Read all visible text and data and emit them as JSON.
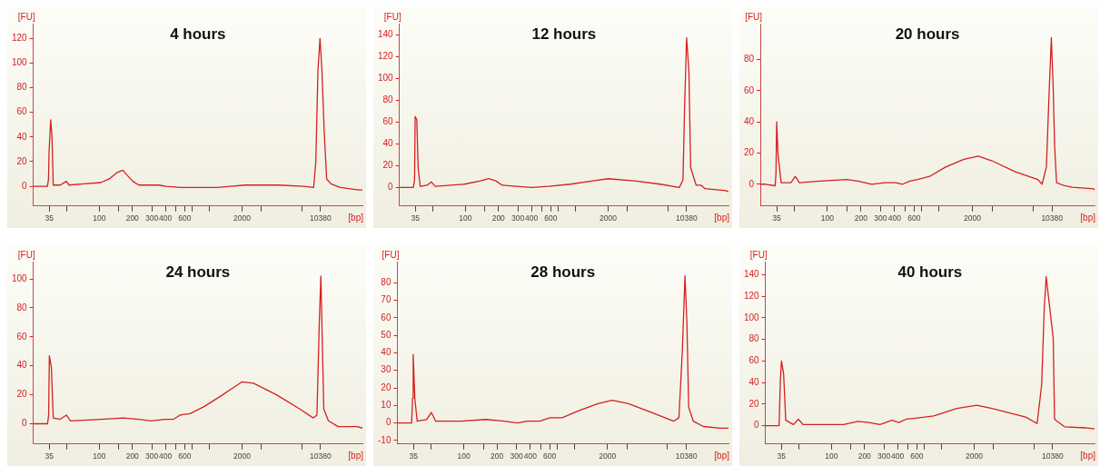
{
  "chart_data": [
    {
      "type": "line",
      "title": "4 hours",
      "xlabel": "[bp]",
      "ylabel": "[FU]",
      "color": "#d42020",
      "marker": "none",
      "log": "x",
      "xlim": [
        25,
        25000
      ],
      "ylim": [
        -16,
        132
      ],
      "yticks": [
        0,
        20,
        40,
        60,
        80,
        100,
        120
      ],
      "xticks": [
        35,
        {
          "value": 50,
          "label": null
        },
        100,
        {
          "value": 150,
          "label": null
        },
        200,
        300,
        400,
        {
          "value": 500,
          "label": null
        },
        600,
        {
          "value": 700,
          "label": null
        },
        {
          "value": 1000,
          "label": null
        },
        2000,
        {
          "value": 3000,
          "label": null
        },
        {
          "value": 7000,
          "label": null
        },
        10380
      ],
      "x": [
        25,
        33.6,
        34.4,
        34.8,
        36,
        37,
        38,
        44,
        50,
        53,
        72,
        103,
        123,
        144,
        164,
        179,
        202,
        229,
        282,
        347,
        407,
        551,
        693,
        1190,
        2130,
        4280,
        7330,
        8980,
        9400,
        9820,
        10260,
        10700,
        11200,
        11800,
        12900,
        15700,
        23300,
        25000
      ],
      "values": [
        0,
        0,
        6,
        28,
        54,
        40,
        1,
        1,
        4,
        1,
        2,
        3,
        6,
        11,
        13,
        9,
        4,
        1,
        1,
        1,
        0,
        -1,
        -1,
        -1,
        1,
        1,
        0,
        -1,
        20,
        93,
        120,
        93,
        45,
        6,
        2,
        -1,
        -3,
        -3
      ]
    },
    {
      "type": "line",
      "title": "12 hours",
      "xlabel": "[bp]",
      "ylabel": "[FU]",
      "color": "#d42020",
      "marker": "none",
      "log": "x",
      "xlim": [
        25,
        25000
      ],
      "ylim": [
        -17,
        150
      ],
      "yticks": [
        0,
        20,
        40,
        60,
        80,
        100,
        120,
        140
      ],
      "xticks": [
        35,
        {
          "value": 50,
          "label": null
        },
        100,
        {
          "value": 150,
          "label": null
        },
        200,
        300,
        400,
        {
          "value": 500,
          "label": null
        },
        600,
        {
          "value": 700,
          "label": null
        },
        {
          "value": 1000,
          "label": null
        },
        2000,
        {
          "value": 3000,
          "label": null
        },
        {
          "value": 7000,
          "label": null
        },
        10380
      ],
      "x": [
        25,
        33.5,
        34.4,
        34.8,
        36,
        37.1,
        38.7,
        44.6,
        49,
        53,
        98,
        137,
        163,
        189,
        217,
        290,
        407,
        571,
        908,
        1450,
        2000,
        3480,
        5940,
        8910,
        9620,
        9980,
        10380,
        10900,
        11300,
        12700,
        14100,
        15200,
        23700,
        25000
      ],
      "values": [
        0,
        0,
        7,
        65,
        62,
        18,
        1,
        2,
        5,
        1,
        3,
        6,
        8,
        6,
        2,
        1,
        0,
        1,
        3,
        6,
        8,
        6,
        3,
        0,
        7,
        79,
        137,
        106,
        18,
        2,
        2,
        -1,
        -3,
        -4
      ]
    },
    {
      "type": "line",
      "title": "20 hours",
      "xlabel": "[bp]",
      "ylabel": "[FU]",
      "color": "#d42020",
      "marker": "none",
      "log": "x",
      "xlim": [
        25,
        25000
      ],
      "ylim": [
        -14,
        103
      ],
      "yticks": [
        0,
        20,
        40,
        60,
        80
      ],
      "xticks": [
        35,
        {
          "value": 50,
          "label": null
        },
        100,
        {
          "value": 150,
          "label": null
        },
        200,
        300,
        400,
        {
          "value": 500,
          "label": null
        },
        600,
        {
          "value": 700,
          "label": null
        },
        {
          "value": 1000,
          "label": null
        },
        2000,
        {
          "value": 3000,
          "label": null
        },
        {
          "value": 7000,
          "label": null
        },
        10380
      ],
      "x": [
        25,
        27.7,
        33.9,
        34.5,
        35,
        36,
        38.4,
        47,
        51.4,
        56,
        85,
        149,
        188,
        249,
        327,
        410,
        474,
        549,
        643,
        826,
        1150,
        1680,
        2260,
        3000,
        4860,
        7740,
        8450,
        9240,
        9720,
        10230,
        10620,
        10960,
        11400,
        13500,
        15700,
        24700,
        25000
      ],
      "values": [
        0,
        0,
        -1,
        7,
        40,
        19,
        1,
        1,
        5,
        1,
        2,
        3,
        2,
        0,
        1,
        1,
        0,
        2,
        3,
        5,
        11,
        16,
        18,
        15,
        8,
        3,
        0,
        11,
        54,
        94,
        63,
        24,
        1,
        -1,
        -2,
        -3,
        -4
      ]
    },
    {
      "type": "line",
      "title": "24 hours",
      "xlabel": "[bp]",
      "ylabel": "[FU]",
      "color": "#d42020",
      "marker": "none",
      "log": "x",
      "xlim": [
        25,
        25000
      ],
      "ylim": [
        -14,
        112
      ],
      "yticks": [
        0,
        20,
        40,
        60,
        80,
        100
      ],
      "xticks": [
        35,
        {
          "value": 50,
          "label": null
        },
        100,
        {
          "value": 150,
          "label": null
        },
        200,
        300,
        400,
        {
          "value": 500,
          "label": null
        },
        600,
        {
          "value": 700,
          "label": null
        },
        {
          "value": 1000,
          "label": null
        },
        2000,
        {
          "value": 3000,
          "label": null
        },
        {
          "value": 7000,
          "label": null
        },
        10380
      ],
      "x": [
        25,
        33.7,
        34.5,
        35,
        36.5,
        38,
        43.6,
        50,
        54.6,
        104,
        166,
        229,
        297,
        394,
        471,
        543,
        670,
        908,
        1330,
        2000,
        2540,
        4120,
        6760,
        8910,
        9620,
        10110,
        10450,
        10740,
        11120,
        12250,
        15000,
        22300,
        25000
      ],
      "values": [
        0,
        0,
        6,
        47,
        39,
        4,
        3,
        6,
        2,
        3,
        4,
        3,
        2,
        3,
        3,
        6,
        7,
        12,
        20,
        29,
        28,
        20,
        10,
        4,
        6,
        70,
        102,
        60,
        10,
        2,
        -2,
        -2,
        -3
      ]
    },
    {
      "type": "line",
      "title": "28 hours",
      "xlabel": "[bp]",
      "ylabel": "[FU]",
      "color": "#d42020",
      "marker": "none",
      "log": "x",
      "xlim": [
        25,
        25000
      ],
      "ylim": [
        -12,
        92
      ],
      "yticks": [
        -10,
        0,
        10,
        20,
        30,
        40,
        50,
        60,
        70,
        80
      ],
      "xticks": [
        35,
        {
          "value": 50,
          "label": null
        },
        100,
        {
          "value": 150,
          "label": null
        },
        200,
        300,
        400,
        {
          "value": 500,
          "label": null
        },
        600,
        {
          "value": 700,
          "label": null
        },
        {
          "value": 1000,
          "label": null
        },
        2000,
        {
          "value": 3000,
          "label": null
        },
        {
          "value": 7000,
          "label": null
        },
        10380
      ],
      "x": [
        25,
        33.7,
        34.3,
        34.8,
        36,
        37.8,
        46,
        50.8,
        55.6,
        95.5,
        158,
        232,
        306,
        376,
        486,
        606,
        777,
        1100,
        1640,
        2210,
        3100,
        5040,
        7950,
        8890,
        9530,
        10090,
        10500,
        10900,
        12000,
        14800,
        21000,
        25000
      ],
      "values": [
        0,
        0,
        14,
        39,
        14,
        1,
        2,
        6,
        1,
        1,
        2,
        1,
        0,
        1,
        1,
        3,
        3,
        7,
        11,
        13,
        11,
        6,
        1,
        3,
        40,
        84,
        57,
        9,
        1,
        -2,
        -3,
        -3
      ]
    },
    {
      "type": "line",
      "title": "40 hours",
      "xlabel": "[bp]",
      "ylabel": "[FU]",
      "color": "#d42020",
      "marker": "none",
      "log": "x",
      "xlim": [
        25,
        25000
      ],
      "ylim": [
        -17,
        152
      ],
      "yticks": [
        0,
        20,
        40,
        60,
        80,
        100,
        120,
        140
      ],
      "xticks": [
        35,
        {
          "value": 50,
          "label": null
        },
        100,
        {
          "value": 150,
          "label": null
        },
        200,
        300,
        400,
        {
          "value": 500,
          "label": null
        },
        600,
        {
          "value": 700,
          "label": null
        },
        {
          "value": 1000,
          "label": null
        },
        2000,
        {
          "value": 3000,
          "label": null
        },
        {
          "value": 7000,
          "label": null
        },
        10380
      ],
      "x": [
        25,
        33.3,
        34.2,
        35,
        36.6,
        38.3,
        45,
        50,
        55,
        129,
        174,
        218,
        277,
        354,
        411,
        479,
        586,
        855,
        1390,
        2110,
        2900,
        5890,
        7490,
        8240,
        8700,
        9060,
        10500,
        10800,
        11400,
        13300,
        20600,
        25000
      ],
      "values": [
        0,
        0,
        42,
        60,
        48,
        5,
        1,
        6,
        1,
        1,
        4,
        3,
        1,
        5,
        3,
        6,
        7,
        9,
        16,
        19,
        16,
        8,
        2,
        38,
        109,
        138,
        81,
        6,
        4,
        -1,
        -2,
        -3
      ]
    }
  ]
}
